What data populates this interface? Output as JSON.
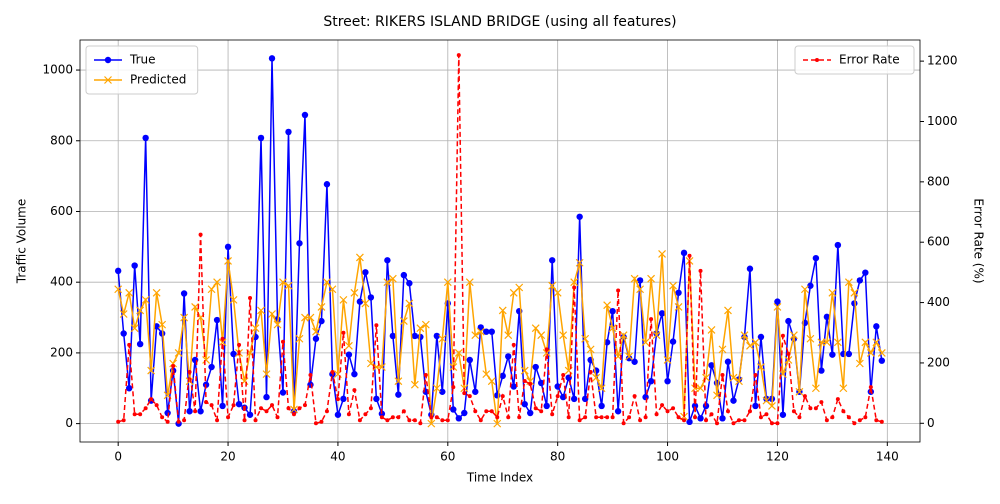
{
  "chart_data": {
    "type": "line",
    "title": "Street: RIKERS ISLAND BRIDGE (using all features)",
    "xlabel": "Time Index",
    "ylabel": "Traffic Volume",
    "y2label": "Error Rate (%)",
    "x": [
      0,
      1,
      2,
      3,
      4,
      5,
      6,
      7,
      8,
      9,
      10,
      11,
      12,
      13,
      14,
      15,
      16,
      17,
      18,
      19,
      20,
      21,
      22,
      23,
      24,
      25,
      26,
      27,
      28,
      29,
      30,
      31,
      32,
      33,
      34,
      35,
      36,
      37,
      38,
      39,
      40,
      41,
      42,
      43,
      44,
      45,
      46,
      47,
      48,
      49,
      50,
      51,
      52,
      53,
      54,
      55,
      56,
      57,
      58,
      59,
      60,
      61,
      62,
      63,
      64,
      65,
      66,
      67,
      68,
      69,
      70,
      71,
      72,
      73,
      74,
      75,
      76,
      77,
      78,
      79,
      80,
      81,
      82,
      83,
      84,
      85,
      86,
      87,
      88,
      89,
      90,
      91,
      92,
      93,
      94,
      95,
      96,
      97,
      98,
      99,
      100,
      101,
      102,
      103,
      104,
      105,
      106,
      107,
      108,
      109,
      110,
      111,
      112,
      113,
      114,
      115,
      116,
      117,
      118,
      119,
      120,
      121,
      122,
      123,
      124,
      125,
      126,
      127,
      128,
      129,
      130,
      131,
      132,
      133,
      134,
      135,
      136,
      137,
      138,
      139
    ],
    "series": [
      {
        "name": "True",
        "color": "#0000ff",
        "marker": "o",
        "dash": "solid",
        "axis": "y",
        "values": [
          432,
          255,
          100,
          447,
          225,
          808,
          65,
          275,
          255,
          30,
          150,
          0,
          368,
          35,
          180,
          35,
          110,
          160,
          293,
          50,
          500,
          197,
          55,
          45,
          25,
          245,
          808,
          75,
          1033,
          295,
          88,
          825,
          35,
          510,
          873,
          110,
          240,
          290,
          677,
          140,
          25,
          70,
          195,
          140,
          345,
          428,
          357,
          70,
          28,
          462,
          248,
          82,
          420,
          397,
          248,
          245,
          90,
          25,
          248,
          90,
          340,
          40,
          15,
          30,
          180,
          90,
          272,
          260,
          260,
          80,
          135,
          190,
          105,
          318,
          55,
          30,
          160,
          115,
          50,
          462,
          105,
          75,
          130,
          70,
          585,
          70,
          180,
          150,
          50,
          230,
          318,
          35,
          245,
          185,
          175,
          405,
          75,
          120,
          255,
          312,
          120,
          232,
          370,
          483,
          5,
          50,
          15,
          50,
          165,
          115,
          15,
          175,
          65,
          125,
          245,
          438,
          50,
          245,
          70,
          70,
          345,
          25,
          290,
          240,
          90,
          285,
          390,
          468,
          150,
          302,
          195,
          505,
          197,
          197,
          340,
          405,
          427,
          90,
          275,
          178
        ]
      },
      {
        "name": "Predicted",
        "color": "#ffa500",
        "marker": "x",
        "dash": "solid",
        "axis": "y",
        "values": [
          380,
          310,
          370,
          270,
          320,
          350,
          150,
          370,
          280,
          80,
          170,
          200,
          300,
          120,
          330,
          300,
          180,
          380,
          400,
          230,
          460,
          350,
          200,
          120,
          200,
          270,
          320,
          140,
          310,
          280,
          400,
          390,
          40,
          240,
          300,
          300,
          260,
          330,
          400,
          380,
          140,
          350,
          220,
          370,
          470,
          340,
          170,
          160,
          160,
          400,
          410,
          120,
          290,
          340,
          110,
          270,
          280,
          0,
          100,
          240,
          400,
          160,
          200,
          100,
          400,
          250,
          260,
          140,
          120,
          0,
          320,
          250,
          370,
          385,
          150,
          120,
          270,
          250,
          200,
          390,
          370,
          250,
          150,
          400,
          455,
          240,
          210,
          130,
          100,
          335,
          270,
          190,
          250,
          190,
          410,
          380,
          230,
          410,
          250,
          480,
          180,
          390,
          330,
          20,
          460,
          100,
          100,
          130,
          265,
          80,
          210,
          320,
          130,
          120,
          250,
          220,
          230,
          160,
          65,
          50,
          330,
          140,
          180,
          250,
          90,
          380,
          240,
          100,
          230,
          230,
          370,
          230,
          100,
          400,
          370,
          170,
          230,
          200,
          230,
          200
        ]
      },
      {
        "name": "Error Rate",
        "color": "#ff0000",
        "marker": ".",
        "dash": "dashed",
        "axis": "y2",
        "values": [
          5,
          10,
          260,
          30,
          30,
          50,
          80,
          60,
          20,
          5,
          190,
          5,
          10,
          170,
          40,
          625,
          70,
          60,
          10,
          280,
          20,
          60,
          260,
          10,
          415,
          10,
          50,
          40,
          60,
          20,
          270,
          50,
          30,
          50,
          60,
          160,
          0,
          5,
          40,
          170,
          80,
          300,
          30,
          110,
          10,
          30,
          50,
          325,
          20,
          10,
          20,
          20,
          40,
          10,
          10,
          0,
          160,
          20,
          20,
          10,
          10,
          120,
          1220,
          100,
          90,
          40,
          10,
          40,
          40,
          20,
          90,
          20,
          260,
          20,
          140,
          130,
          50,
          40,
          245,
          30,
          90,
          160,
          20,
          450,
          10,
          20,
          170,
          20,
          20,
          20,
          20,
          440,
          0,
          20,
          90,
          10,
          20,
          345,
          30,
          60,
          40,
          50,
          20,
          10,
          555,
          20,
          505,
          10,
          30,
          0,
          160,
          40,
          0,
          10,
          10,
          40,
          160,
          20,
          30,
          0,
          0,
          290,
          230,
          40,
          20,
          90,
          50,
          50,
          70,
          10,
          20,
          80,
          40,
          20,
          0,
          10,
          20,
          120,
          10,
          5
        ]
      }
    ],
    "xlim": [
      -6.95,
      145.95
    ],
    "xticks": [
      0,
      20,
      40,
      60,
      80,
      100,
      120,
      140
    ],
    "ylim": [
      -52,
      1085
    ],
    "yticks": [
      0,
      200,
      400,
      600,
      800,
      1000
    ],
    "y2lim": [
      -62,
      1270
    ],
    "y2ticks": [
      0,
      200,
      400,
      600,
      800,
      1000,
      1200
    ],
    "grid": true,
    "legend": {
      "y": "upper left",
      "y2": "upper right"
    }
  }
}
